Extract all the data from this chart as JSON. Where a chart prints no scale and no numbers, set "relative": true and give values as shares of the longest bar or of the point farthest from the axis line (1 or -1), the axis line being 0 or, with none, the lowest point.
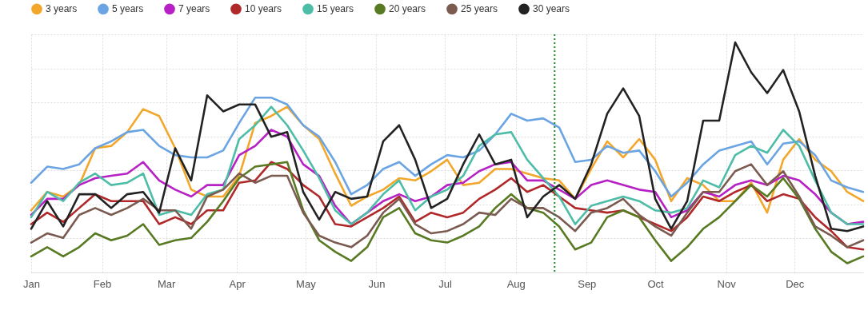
{
  "chart_data": {
    "type": "line",
    "relative": true,
    "legend": "top",
    "grid": true,
    "line_style": "solid",
    "x": [
      "--01-01",
      "--01-08",
      "--01-15",
      "--01-22",
      "--01-29",
      "--02-05",
      "--02-12",
      "--02-19",
      "--02-26",
      "--03-05",
      "--03-12",
      "--03-19",
      "--03-26",
      "--04-02",
      "--04-09",
      "--04-16",
      "--04-23",
      "--04-30",
      "--05-07",
      "--05-14",
      "--05-21",
      "--05-28",
      "--06-04",
      "--06-11",
      "--06-18",
      "--06-25",
      "--07-02",
      "--07-09",
      "--07-16",
      "--07-23",
      "--07-30",
      "--08-06",
      "--08-13",
      "--08-20",
      "--08-27",
      "--09-03",
      "--09-10",
      "--09-17",
      "--09-24",
      "--10-01",
      "--10-08",
      "--10-15",
      "--10-22",
      "--10-29",
      "--11-05",
      "--11-12",
      "--11-19",
      "--11-26",
      "--12-03",
      "--12-10",
      "--12-17",
      "--12-24",
      "--12-31"
    ],
    "xlim": [
      "--01-01",
      "--12-31"
    ],
    "xticks": [
      {
        "value": "--01-01",
        "label": "Jan"
      },
      {
        "value": "--02-01",
        "label": "Feb"
      },
      {
        "value": "--03-01",
        "label": "Mar"
      },
      {
        "value": "--04-01",
        "label": "Apr"
      },
      {
        "value": "--05-01",
        "label": "May"
      },
      {
        "value": "--06-01",
        "label": "Jun"
      },
      {
        "value": "--07-01",
        "label": "Jul"
      },
      {
        "value": "--08-01",
        "label": "Aug"
      },
      {
        "value": "--09-01",
        "label": "Sep"
      },
      {
        "value": "--10-01",
        "label": "Oct"
      },
      {
        "value": "--11-01",
        "label": "Nov"
      },
      {
        "value": "--12-01",
        "label": "Dec"
      }
    ],
    "ref_lines": [
      {
        "axis": "x",
        "value": "--08-18",
        "color": "#1f8a2a",
        "line_style": "dotted"
      }
    ],
    "series": [
      {
        "name": "3 years",
        "color": "#f2a72a",
        "values": [
          0.27,
          0.35,
          0.33,
          0.38,
          0.54,
          0.55,
          0.61,
          0.71,
          0.68,
          0.54,
          0.36,
          0.33,
          0.33,
          0.42,
          0.65,
          0.68,
          0.72,
          0.64,
          0.58,
          0.43,
          0.29,
          0.33,
          0.36,
          0.41,
          0.4,
          0.44,
          0.49,
          0.38,
          0.39,
          0.45,
          0.45,
          0.43,
          0.41,
          0.4,
          0.32,
          0.45,
          0.57,
          0.5,
          0.58,
          0.49,
          0.31,
          0.41,
          0.38,
          0.31,
          0.31,
          0.39,
          0.26,
          0.49,
          0.58,
          0.49,
          0.44,
          0.35,
          0.31
        ]
      },
      {
        "name": "5 years",
        "color": "#6aa4e2",
        "values": [
          0.39,
          0.46,
          0.45,
          0.47,
          0.54,
          0.57,
          0.61,
          0.62,
          0.55,
          0.51,
          0.5,
          0.5,
          0.53,
          0.65,
          0.76,
          0.76,
          0.73,
          0.64,
          0.59,
          0.48,
          0.34,
          0.38,
          0.45,
          0.48,
          0.42,
          0.47,
          0.51,
          0.5,
          0.53,
          0.6,
          0.69,
          0.66,
          0.67,
          0.63,
          0.48,
          0.49,
          0.55,
          0.52,
          0.53,
          0.44,
          0.33,
          0.39,
          0.47,
          0.53,
          0.55,
          0.57,
          0.47,
          0.56,
          0.57,
          0.51,
          0.4,
          0.37,
          0.35
        ]
      },
      {
        "name": "7 years",
        "color": "#b620c4",
        "values": [
          0.25,
          0.32,
          0.32,
          0.38,
          0.41,
          0.42,
          0.43,
          0.48,
          0.4,
          0.36,
          0.33,
          0.38,
          0.38,
          0.51,
          0.55,
          0.62,
          0.59,
          0.47,
          0.42,
          0.29,
          0.21,
          0.26,
          0.31,
          0.34,
          0.31,
          0.33,
          0.38,
          0.39,
          0.44,
          0.47,
          0.48,
          0.4,
          0.4,
          0.36,
          0.32,
          0.38,
          0.4,
          0.38,
          0.36,
          0.35,
          0.24,
          0.27,
          0.35,
          0.33,
          0.38,
          0.4,
          0.38,
          0.42,
          0.4,
          0.34,
          0.26,
          0.21,
          0.22
        ]
      },
      {
        "name": "10 years",
        "color": "#b0282a",
        "values": [
          0.21,
          0.26,
          0.22,
          0.28,
          0.34,
          0.31,
          0.31,
          0.31,
          0.21,
          0.24,
          0.21,
          0.27,
          0.27,
          0.39,
          0.4,
          0.48,
          0.45,
          0.38,
          0.33,
          0.21,
          0.2,
          0.24,
          0.28,
          0.33,
          0.22,
          0.26,
          0.24,
          0.26,
          0.32,
          0.36,
          0.41,
          0.35,
          0.38,
          0.33,
          0.28,
          0.27,
          0.26,
          0.27,
          0.24,
          0.21,
          0.18,
          0.24,
          0.33,
          0.31,
          0.35,
          0.38,
          0.31,
          0.34,
          0.32,
          0.24,
          0.18,
          0.11,
          0.1
        ]
      },
      {
        "name": "15 years",
        "color": "#4dbda8",
        "values": [
          0.24,
          0.35,
          0.31,
          0.39,
          0.43,
          0.38,
          0.39,
          0.43,
          0.25,
          0.27,
          0.25,
          0.34,
          0.36,
          0.58,
          0.64,
          0.72,
          0.64,
          0.53,
          0.41,
          0.27,
          0.21,
          0.26,
          0.34,
          0.4,
          0.27,
          0.33,
          0.36,
          0.42,
          0.55,
          0.6,
          0.61,
          0.49,
          0.41,
          0.33,
          0.21,
          0.29,
          0.31,
          0.33,
          0.31,
          0.27,
          0.26,
          0.28,
          0.4,
          0.37,
          0.51,
          0.55,
          0.52,
          0.62,
          0.55,
          0.4,
          0.26,
          0.21,
          0.21
        ]
      },
      {
        "name": "20 years",
        "color": "#587a22",
        "values": [
          0.07,
          0.11,
          0.07,
          0.11,
          0.17,
          0.14,
          0.16,
          0.21,
          0.12,
          0.14,
          0.15,
          0.22,
          0.31,
          0.41,
          0.46,
          0.47,
          0.48,
          0.27,
          0.14,
          0.09,
          0.05,
          0.11,
          0.24,
          0.28,
          0.17,
          0.14,
          0.13,
          0.16,
          0.2,
          0.28,
          0.34,
          0.28,
          0.26,
          0.2,
          0.1,
          0.13,
          0.24,
          0.27,
          0.24,
          0.14,
          0.05,
          0.11,
          0.19,
          0.24,
          0.31,
          0.38,
          0.33,
          0.41,
          0.32,
          0.19,
          0.09,
          0.04,
          0.07
        ]
      },
      {
        "name": "25 years",
        "color": "#7b5a50",
        "values": [
          0.13,
          0.17,
          0.15,
          0.25,
          0.28,
          0.25,
          0.28,
          0.32,
          0.27,
          0.27,
          0.19,
          0.33,
          0.36,
          0.43,
          0.39,
          0.42,
          0.42,
          0.26,
          0.16,
          0.13,
          0.11,
          0.16,
          0.26,
          0.32,
          0.21,
          0.17,
          0.18,
          0.21,
          0.26,
          0.25,
          0.32,
          0.28,
          0.28,
          0.24,
          0.18,
          0.26,
          0.28,
          0.32,
          0.25,
          0.2,
          0.16,
          0.26,
          0.35,
          0.35,
          0.44,
          0.47,
          0.38,
          0.44,
          0.33,
          0.2,
          0.16,
          0.11,
          0.14
        ]
      },
      {
        "name": "30 years",
        "color": "#222222",
        "values": [
          0.19,
          0.31,
          0.2,
          0.34,
          0.34,
          0.28,
          0.34,
          0.35,
          0.26,
          0.54,
          0.4,
          0.77,
          0.7,
          0.73,
          0.73,
          0.59,
          0.61,
          0.35,
          0.23,
          0.35,
          0.32,
          0.33,
          0.57,
          0.64,
          0.49,
          0.28,
          0.32,
          0.47,
          0.6,
          0.47,
          0.49,
          0.24,
          0.33,
          0.38,
          0.32,
          0.47,
          0.69,
          0.8,
          0.68,
          0.32,
          0.19,
          0.31,
          0.66,
          0.66,
          1.0,
          0.87,
          0.78,
          0.88,
          0.7,
          0.42,
          0.19,
          0.18,
          0.2
        ]
      }
    ]
  }
}
